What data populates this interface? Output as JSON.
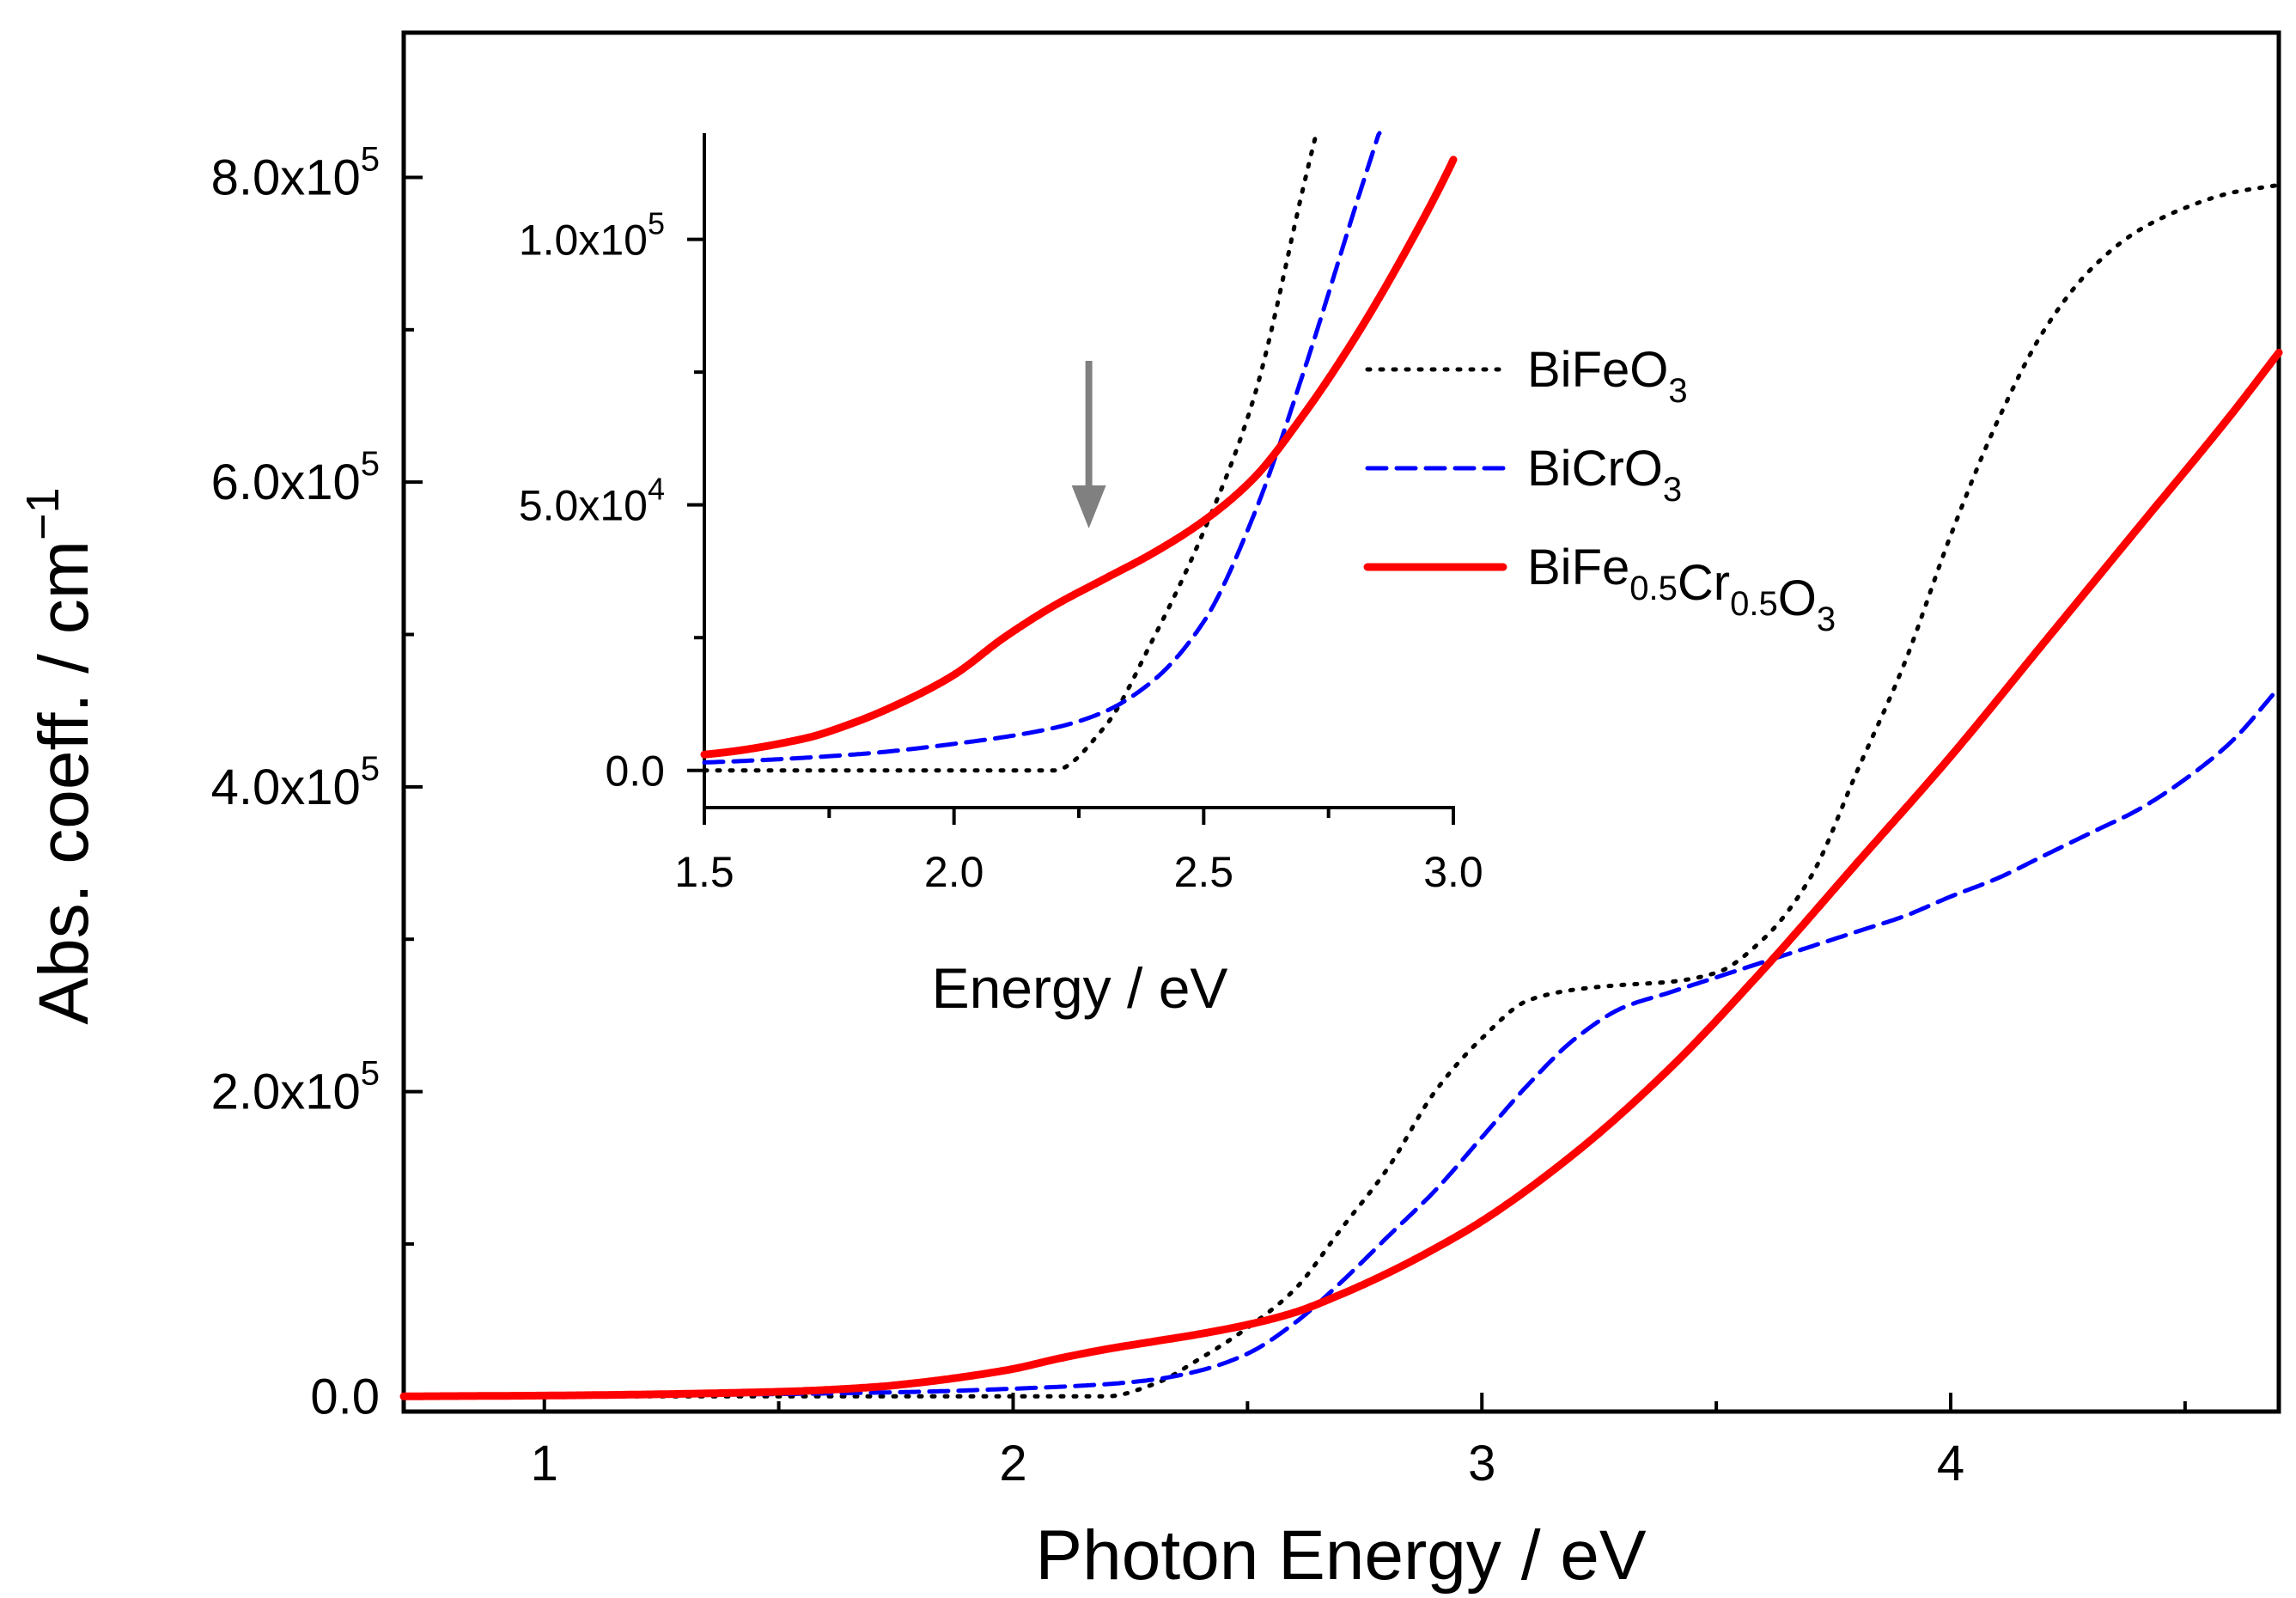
{
  "chart_data": {
    "type": "line",
    "main": {
      "xlabel": "Photon Energy / eV",
      "ylabel_base": "Abs. coeff. / cm",
      "ylabel_sup": "−1",
      "xlim": [
        0.7,
        4.7
      ],
      "ylim": [
        -10000,
        895000
      ],
      "xticks": [
        1,
        2,
        3,
        4
      ],
      "xtick_labels": [
        "1",
        "2",
        "3",
        "4"
      ],
      "x_minor_ticks": [
        1.5,
        2.5,
        3.5,
        4.5
      ],
      "yticks": [
        0,
        200000,
        400000,
        600000,
        800000
      ],
      "ytick_labels": [
        {
          "base": "0.0",
          "sup": ""
        },
        {
          "base": "2.0x10",
          "sup": "5"
        },
        {
          "base": "4.0x10",
          "sup": "5"
        },
        {
          "base": "6.0x10",
          "sup": "5"
        },
        {
          "base": "8.0x10",
          "sup": "5"
        }
      ],
      "y_minor_ticks": [
        100000,
        300000,
        500000,
        700000
      ]
    },
    "inset": {
      "xlabel": "Energy / eV",
      "xlim": [
        1.5,
        3.0
      ],
      "ylim": [
        -7000,
        120000
      ],
      "xticks": [
        1.5,
        2.0,
        2.5,
        3.0
      ],
      "xtick_labels": [
        "1.5",
        "2.0",
        "2.5",
        "3.0"
      ],
      "x_minor_ticks": [
        1.75,
        2.25,
        2.75
      ],
      "yticks": [
        0,
        50000,
        100000
      ],
      "ytick_labels": [
        {
          "base": "0.0",
          "sup": ""
        },
        {
          "base": "5.0x10",
          "sup": "4"
        },
        {
          "base": "1.0x10",
          "sup": "5"
        }
      ],
      "y_minor_ticks": [
        25000,
        75000
      ],
      "arrow_at_energy": 2.27
    },
    "series": [
      {
        "name": "BiFeO3",
        "label_base": "BiFeO",
        "label_parts": [
          {
            "t": "BiFeO",
            "sub": "3"
          }
        ],
        "color": "#000000",
        "style": "dotted",
        "x": [
          0.7,
          1.0,
          1.5,
          2.0,
          2.2,
          2.3,
          2.4,
          2.5,
          2.6,
          2.7,
          2.8,
          2.9,
          3.0,
          3.1,
          3.2,
          3.3,
          3.4,
          3.5,
          3.6,
          3.7,
          3.8,
          3.9,
          4.0,
          4.1,
          4.2,
          4.3,
          4.4,
          4.5,
          4.6,
          4.7
        ],
        "y": [
          0,
          0,
          0,
          0,
          0,
          8000,
          25000,
          45000,
          70000,
          110000,
          150000,
          200000,
          235000,
          260000,
          267000,
          270000,
          272000,
          278000,
          300000,
          340000,
          410000,
          480000,
          565000,
          640000,
          700000,
          740000,
          765000,
          780000,
          790000,
          795000
        ]
      },
      {
        "name": "BiCrO3",
        "label_base": "BiCrO",
        "label_parts": [
          {
            "t": "BiCrO",
            "sub": "3"
          }
        ],
        "color": "#0000ff",
        "style": "dashed",
        "x": [
          0.7,
          1.0,
          1.5,
          1.8,
          2.0,
          2.2,
          2.3,
          2.4,
          2.5,
          2.6,
          2.7,
          2.8,
          2.9,
          3.0,
          3.1,
          3.2,
          3.3,
          3.4,
          3.5,
          3.6,
          3.7,
          3.8,
          3.9,
          4.0,
          4.1,
          4.2,
          4.3,
          4.4,
          4.5,
          4.6,
          4.7
        ],
        "y": [
          0,
          400,
          1500,
          3000,
          5000,
          8000,
          11000,
          17000,
          28000,
          48000,
          75000,
          105000,
          135000,
          170000,
          205000,
          235000,
          255000,
          265000,
          275000,
          285000,
          295000,
          305000,
          315000,
          328000,
          340000,
          355000,
          370000,
          385000,
          405000,
          430000,
          465000
        ]
      },
      {
        "name": "BiFe0.5Cr0.5O3",
        "label_base": "BiFe",
        "label_parts": [
          {
            "t": "BiFe",
            "sub": "0.5"
          },
          {
            "t": "Cr",
            "sub": "0.5"
          },
          {
            "t": "O",
            "sub": "3"
          }
        ],
        "color": "#ff0000",
        "style": "solid",
        "x": [
          0.7,
          1.0,
          1.5,
          1.7,
          1.8,
          1.9,
          2.0,
          2.1,
          2.2,
          2.3,
          2.4,
          2.5,
          2.6,
          2.7,
          2.8,
          2.9,
          3.0,
          3.2,
          3.4,
          3.6,
          3.8,
          4.0,
          4.2,
          4.4,
          4.6,
          4.7
        ],
        "y": [
          0,
          500,
          3000,
          6000,
          9000,
          13000,
          18000,
          25000,
          31000,
          36000,
          41000,
          47000,
          55000,
          67000,
          81000,
          97000,
          115000,
          160000,
          215000,
          280000,
          350000,
          420000,
          495000,
          570000,
          645000,
          685000
        ]
      }
    ]
  }
}
